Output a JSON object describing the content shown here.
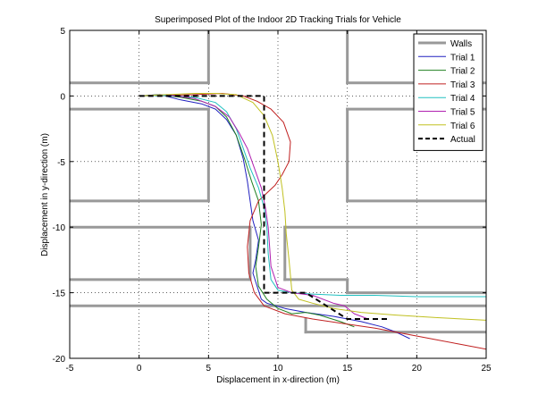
{
  "chart_data": {
    "type": "line",
    "title": "Superimposed Plot of the Indoor 2D Tracking Trials for Vehicle",
    "xlabel": "Displacement in x-direction (m)",
    "ylabel": "Displacement in y-direction (m)",
    "xlim": [
      -5,
      25
    ],
    "ylim": [
      -20,
      5
    ],
    "xticks": [
      -5,
      0,
      5,
      10,
      15,
      20,
      25
    ],
    "yticks": [
      -20,
      -15,
      -10,
      -5,
      0,
      5
    ],
    "grid": true,
    "legend_position": "top-right",
    "walls": {
      "name": "Walls",
      "color": "#999999",
      "segments": [
        [
          [
            -5,
            1
          ],
          [
            5,
            1
          ]
        ],
        [
          [
            5,
            1
          ],
          [
            5,
            5
          ]
        ],
        [
          [
            -5,
            -1
          ],
          [
            5,
            -1
          ]
        ],
        [
          [
            5,
            -1
          ],
          [
            5,
            -8
          ]
        ],
        [
          [
            5,
            -8
          ],
          [
            -5,
            -8
          ]
        ],
        [
          [
            -5,
            -10
          ],
          [
            8,
            -10
          ]
        ],
        [
          [
            8,
            -10
          ],
          [
            8,
            -14
          ]
        ],
        [
          [
            8,
            -14
          ],
          [
            -5,
            -14
          ]
        ],
        [
          [
            -5,
            -16
          ],
          [
            25,
            -16
          ]
        ],
        [
          [
            15,
            5
          ],
          [
            15,
            1
          ]
        ],
        [
          [
            15,
            1
          ],
          [
            25,
            1
          ]
        ],
        [
          [
            25,
            -1
          ],
          [
            15,
            -1
          ]
        ],
        [
          [
            15,
            -1
          ],
          [
            15,
            -8
          ]
        ],
        [
          [
            15,
            -8
          ],
          [
            25,
            -8
          ]
        ],
        [
          [
            10.5,
            -10
          ],
          [
            25,
            -10
          ]
        ],
        [
          [
            10.5,
            -10
          ],
          [
            10.5,
            -14
          ]
        ],
        [
          [
            10.5,
            -14
          ],
          [
            15,
            -14
          ]
        ],
        [
          [
            15,
            -14
          ],
          [
            15,
            -15
          ]
        ],
        [
          [
            15,
            -15
          ],
          [
            25,
            -15
          ]
        ],
        [
          [
            12,
            -17
          ],
          [
            12,
            -18
          ]
        ],
        [
          [
            12,
            -18
          ],
          [
            25,
            -18
          ]
        ]
      ]
    },
    "series": [
      {
        "name": "Trial 1",
        "color": "#2020c0",
        "x": [
          0,
          1.5,
          3,
          4.5,
          5.5,
          6.3,
          7.0,
          7.5,
          7.8,
          8.0,
          8.2,
          8.6,
          8.4,
          8.2,
          8.5,
          8.8,
          9.2,
          10.5,
          12,
          14,
          16,
          17.5,
          18.5,
          19.5
        ],
        "y": [
          0,
          0.1,
          -0.3,
          -0.6,
          -1.0,
          -1.8,
          -3.0,
          -4.8,
          -6.5,
          -8.0,
          -9.5,
          -11.0,
          -12.5,
          -13.5,
          -14.5,
          -15.5,
          -15.8,
          -16.2,
          -16.5,
          -16.8,
          -17.2,
          -17.6,
          -18.0,
          -18.5
        ]
      },
      {
        "name": "Trial 2",
        "color": "#208020",
        "x": [
          0,
          1.5,
          3,
          4.5,
          5.5,
          6.3,
          7.0,
          7.6,
          8.1,
          8.6,
          8.8,
          8.6,
          8.4,
          8.6,
          9.2,
          10.0,
          11.0,
          12.0,
          13.0,
          14.5,
          15.5
        ],
        "y": [
          0,
          0.1,
          -0.1,
          -0.4,
          -0.8,
          -1.6,
          -3.0,
          -4.8,
          -6.5,
          -8.0,
          -9.8,
          -11.5,
          -13.0,
          -14.5,
          -15.5,
          -16.2,
          -16.6,
          -16.5,
          -16.7,
          -17.2,
          -17.6
        ]
      },
      {
        "name": "Trial 3",
        "color": "#c02020",
        "x": [
          0,
          2,
          4,
          6,
          7.5,
          8.5,
          9.5,
          10.4,
          10.9,
          10.8,
          10.3,
          9.8,
          9.2,
          8.6,
          8.0,
          7.8,
          7.9,
          8.3,
          9.0,
          10.5,
          12.5,
          15,
          17,
          19,
          21,
          23,
          25
        ],
        "y": [
          0,
          0.05,
          0.1,
          0.2,
          0.0,
          -0.4,
          -1.0,
          -2.0,
          -3.5,
          -5.0,
          -6.0,
          -6.8,
          -7.4,
          -8.0,
          -9.5,
          -11.5,
          -13.5,
          -15.0,
          -16.0,
          -16.6,
          -17.0,
          -17.4,
          -17.7,
          -18.1,
          -18.5,
          -18.9,
          -19.3
        ]
      },
      {
        "name": "Trial 4",
        "color": "#20c0c0",
        "x": [
          0,
          2,
          4,
          5.5,
          6.3,
          7.0,
          7.5,
          8.0,
          8.6,
          9.0,
          9.2,
          9.3,
          9.5,
          10.0,
          11.0,
          12.5,
          14.5,
          17,
          20,
          22.5,
          25
        ],
        "y": [
          0,
          0.05,
          -0.1,
          -0.5,
          -1.2,
          -2.5,
          -4.0,
          -5.5,
          -7.0,
          -8.5,
          -10.0,
          -12.0,
          -14.0,
          -14.8,
          -15.0,
          -15.1,
          -15.2,
          -15.2,
          -15.3,
          -15.3,
          -15.3
        ]
      },
      {
        "name": "Trial 5",
        "color": "#b020b0",
        "x": [
          0,
          2,
          4,
          5.5,
          6.5,
          7.2,
          7.8,
          8.3,
          8.8,
          9.1,
          9.3,
          9.4,
          9.5,
          10.0,
          11.0,
          12.5,
          14.0,
          14.8,
          15.5,
          16.5
        ],
        "y": [
          0,
          0.1,
          -0.2,
          -0.8,
          -1.6,
          -2.8,
          -4.0,
          -5.5,
          -7.0,
          -8.5,
          -10.0,
          -11.5,
          -13.0,
          -14.6,
          -15.0,
          -15.2,
          -15.8,
          -16.0,
          -16.6,
          -17.0
        ]
      },
      {
        "name": "Trial 6",
        "color": "#c0c020",
        "x": [
          0,
          2,
          4,
          5.5,
          7.0,
          8.2,
          9.0,
          9.6,
          10.0,
          10.3,
          10.5,
          10.6,
          10.8,
          11.0,
          11.5,
          12.5,
          14.0,
          16.0,
          18.5,
          21.5,
          25
        ],
        "y": [
          0,
          0.1,
          0.2,
          0.2,
          0.1,
          -0.5,
          -1.5,
          -3.0,
          -5.0,
          -7.0,
          -8.8,
          -10.5,
          -12.5,
          -14.8,
          -15.5,
          -15.8,
          -16.2,
          -16.5,
          -16.7,
          -16.9,
          -17.1
        ]
      },
      {
        "name": "Actual",
        "color": "#000000",
        "dashed": true,
        "x": [
          0,
          9,
          9,
          12,
          15,
          18
        ],
        "y": [
          0,
          0,
          -15,
          -15,
          -17,
          -17
        ]
      }
    ]
  }
}
